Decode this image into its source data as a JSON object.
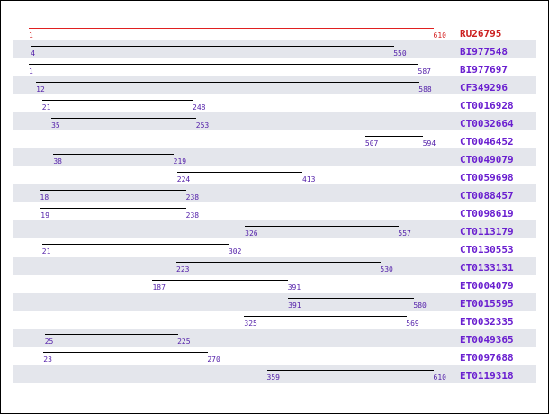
{
  "axis": {
    "min": 1,
    "max": 610
  },
  "colors": {
    "reference": "#cc2020",
    "label": "#6a1fd0",
    "number": "#5522aa",
    "shade": "#e4e6ec"
  },
  "alignments": [
    {
      "id": "RU26795",
      "start": 1,
      "end": 610,
      "reference": true
    },
    {
      "id": "BI977548",
      "start": 4,
      "end": 550
    },
    {
      "id": "BI977697",
      "start": 1,
      "end": 587
    },
    {
      "id": "CF349296",
      "start": 12,
      "end": 588
    },
    {
      "id": "CT0016928",
      "start": 21,
      "end": 248
    },
    {
      "id": "CT0032664",
      "start": 35,
      "end": 253
    },
    {
      "id": "CT0046452",
      "start": 507,
      "end": 594
    },
    {
      "id": "CT0049079",
      "start": 38,
      "end": 219
    },
    {
      "id": "CT0059698",
      "start": 224,
      "end": 413
    },
    {
      "id": "CT0088457",
      "start": 18,
      "end": 238
    },
    {
      "id": "CT0098619",
      "start": 19,
      "end": 238
    },
    {
      "id": "CT0113179",
      "start": 326,
      "end": 557
    },
    {
      "id": "CT0130553",
      "start": 21,
      "end": 302
    },
    {
      "id": "CT0133131",
      "start": 223,
      "end": 530
    },
    {
      "id": "ET0004079",
      "start": 187,
      "end": 391
    },
    {
      "id": "ET0015595",
      "start": 391,
      "end": 580
    },
    {
      "id": "ET0032335",
      "start": 325,
      "end": 569
    },
    {
      "id": "ET0049365",
      "start": 25,
      "end": 225
    },
    {
      "id": "ET0097688",
      "start": 23,
      "end": 270
    },
    {
      "id": "ET0119318",
      "start": 359,
      "end": 610
    }
  ]
}
